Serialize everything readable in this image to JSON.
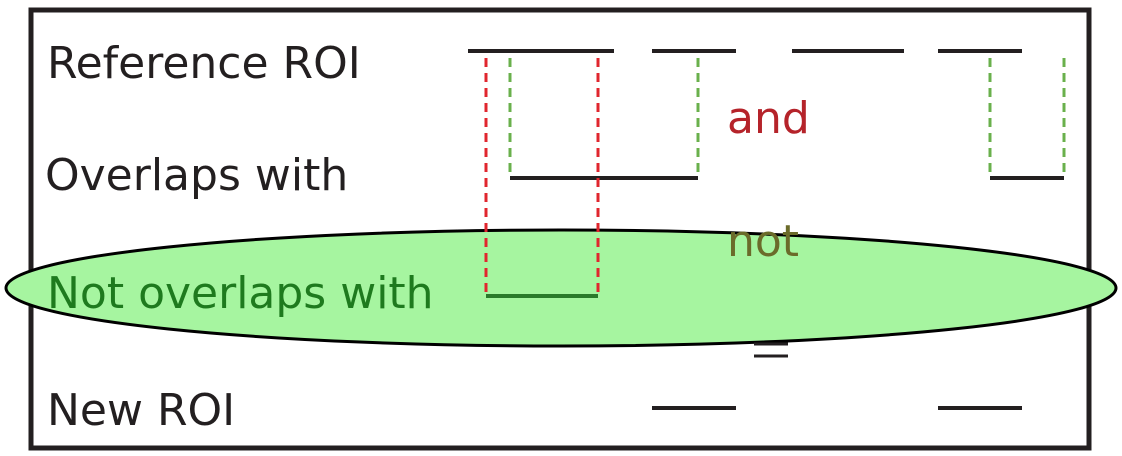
{
  "labels": {
    "reference": "Reference ROI",
    "overlaps": "Overlaps with",
    "not_overlaps": "Not overlaps with",
    "new_roi": "New ROI"
  },
  "operators": {
    "and": "and",
    "not": "not",
    "equals": "="
  },
  "colors": {
    "frame": "#231f20",
    "segment": "#231f20",
    "red_guide": "#e0262e",
    "green_guide": "#6ab04c",
    "and_text": "#b5232a",
    "not_text": "#6b6b2a",
    "ellipse_fill": "#a6f5a0",
    "ellipse_stroke": "#000000",
    "not_overlap_label": "#1e7a1e",
    "not_overlap_segment": "#2a7a2a"
  }
}
